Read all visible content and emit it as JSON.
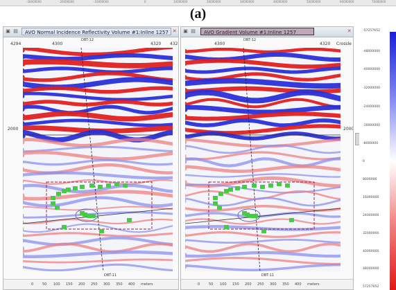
{
  "top_strip": {
    "ticks": [
      "-30000000",
      "-20000000",
      "-10000000",
      "0",
      "10000000",
      "20000000",
      "30000000",
      "40000000",
      "50000000",
      "60000000",
      "70000000"
    ]
  },
  "figure_label": "(a)",
  "left_panel": {
    "title": "AVO Normal Incidence Reflectivity Volume #1:Inline 1257",
    "trace_labels": [
      "4294",
      "4300",
      "4320",
      "432"
    ],
    "well_top": "DBT-12",
    "well_bottom": "DBT-11",
    "depth_label": "2000",
    "depth_unit": "ms",
    "scale_ticks": [
      "0",
      "50",
      "100",
      "150",
      "200",
      "250",
      "300",
      "350",
      "400"
    ],
    "scale_unit": "meters"
  },
  "right_panel": {
    "title": "AVO Gradient Volume #1:Inline 1257",
    "trace_labels": [
      "4300",
      "4320",
      "Crossle"
    ],
    "well_top": "DBT-12",
    "well_bottom": "DBT-11",
    "depth_label": "2000",
    "depth_unit": "ms",
    "scale_ticks": [
      "0",
      "50",
      "100",
      "150",
      "200",
      "250",
      "300",
      "350",
      "400"
    ],
    "scale_unit": "meters"
  },
  "colorbar": {
    "labels": [
      "-57257652",
      "-48000000",
      "-40000000",
      "-32000000",
      "-24000000",
      "-16000000",
      "-8000000",
      "0",
      "8000000",
      "16000000",
      "24000000",
      "32000000",
      "40000000",
      "48000000",
      "57257652"
    ],
    "colors": {
      "negative": "#1a1fd8",
      "mid": "#ffffff",
      "positive": "#e01818"
    }
  },
  "icons": [
    "window-icon",
    "close-icon",
    "seismic-section-icon"
  ]
}
